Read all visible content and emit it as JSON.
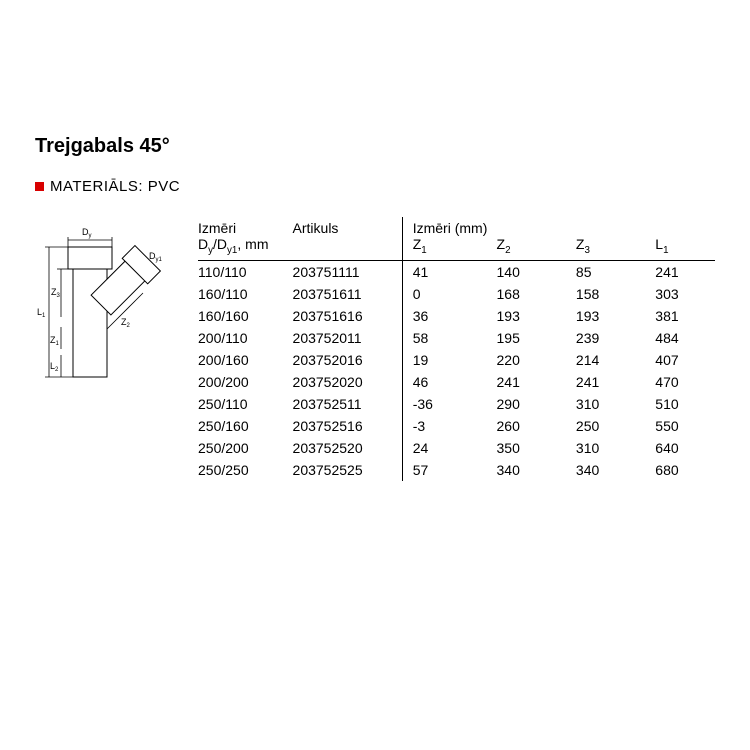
{
  "title": "Trejgabals 45°",
  "material_label": "MATERIĀLS: PVC",
  "accent_color": "#d80000",
  "headers": {
    "izmeri": "Izmēri",
    "artikuls": "Artikuls",
    "izmeri_mm": "Izmēri (mm)",
    "dim_col": "D_y/D_y1, mm",
    "z1": "Z_1",
    "z2": "Z_2",
    "z3": "Z_3",
    "l1": "L_1"
  },
  "diagram": {
    "labels": {
      "Dy": "D_y",
      "Dy1": "D_y1",
      "L1": "L_1",
      "Z1": "Z_1",
      "Z2": "Z_2",
      "Z3": "Z_3",
      "L2": "L_2"
    },
    "stroke": "#000000",
    "fill": "#ffffff"
  },
  "rows": [
    {
      "dim": "110/110",
      "art": "203751111",
      "z1": "41",
      "z2": "140",
      "z3": "85",
      "l1": "241"
    },
    {
      "dim": "160/110",
      "art": "203751611",
      "z1": "0",
      "z2": "168",
      "z3": "158",
      "l1": "303"
    },
    {
      "dim": "160/160",
      "art": "203751616",
      "z1": "36",
      "z2": "193",
      "z3": "193",
      "l1": "381"
    },
    {
      "dim": "200/110",
      "art": "203752011",
      "z1": "58",
      "z2": "195",
      "z3": "239",
      "l1": "484"
    },
    {
      "dim": "200/160",
      "art": "203752016",
      "z1": "19",
      "z2": "220",
      "z3": "214",
      "l1": "407"
    },
    {
      "dim": "200/200",
      "art": "203752020",
      "z1": "46",
      "z2": "241",
      "z3": "241",
      "l1": "470"
    },
    {
      "dim": "250/110",
      "art": "203752511",
      "z1": "-36",
      "z2": "290",
      "z3": "310",
      "l1": "510"
    },
    {
      "dim": "250/160",
      "art": "203752516",
      "z1": "-3",
      "z2": "260",
      "z3": "250",
      "l1": "550"
    },
    {
      "dim": "250/200",
      "art": "203752520",
      "z1": "24",
      "z2": "350",
      "z3": "310",
      "l1": "640"
    },
    {
      "dim": "250/250",
      "art": "203752525",
      "z1": "57",
      "z2": "340",
      "z3": "340",
      "l1": "680"
    }
  ],
  "table_style": {
    "font_size": 14,
    "border_color": "#000000",
    "text_color": "#000000",
    "background": "#ffffff"
  }
}
